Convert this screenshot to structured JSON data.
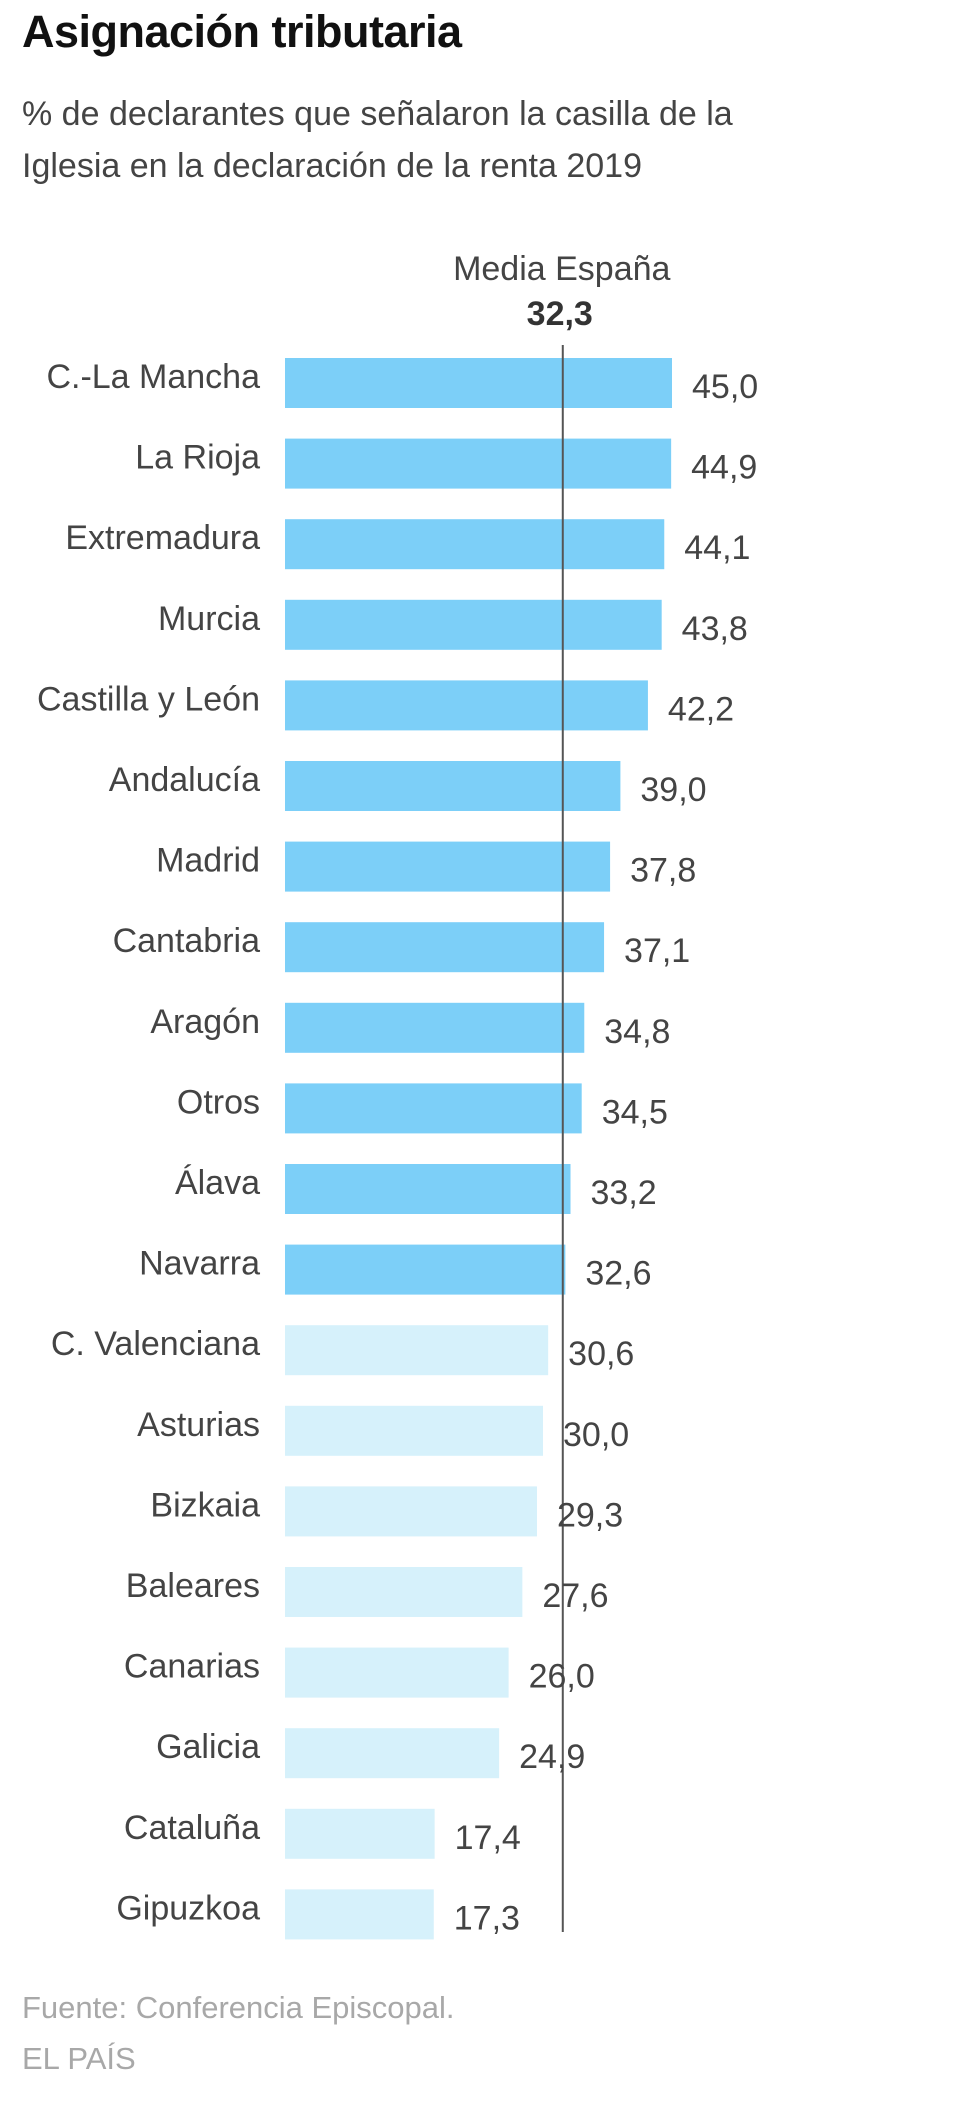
{
  "title": "Asignación tributaria",
  "subtitle": "% de declarantes que señalaron la casilla de la Iglesia en la declaración de la renta 2019",
  "source": "Fuente: Conferencia Episcopal.",
  "brand": "EL PAÍS",
  "colors": {
    "above_mean": "#7ccff8",
    "below_mean": "#d6f1fb",
    "mean_line": "#555555"
  },
  "chart_data": {
    "type": "bar",
    "orientation": "horizontal",
    "categories": [
      "C.-La Mancha",
      "La Rioja",
      "Extremadura",
      "Murcia",
      "Castilla y León",
      "Andalucía",
      "Madrid",
      "Cantabria",
      "Aragón",
      "Otros",
      "Álava",
      "Navarra",
      "C. Valenciana",
      "Asturias",
      "Bizkaia",
      "Baleares",
      "Canarias",
      "Galicia",
      "Cataluña",
      "Gipuzkoa"
    ],
    "values": [
      45.0,
      44.9,
      44.1,
      43.8,
      42.2,
      39.0,
      37.8,
      37.1,
      34.8,
      34.5,
      33.2,
      32.6,
      30.6,
      30.0,
      29.3,
      27.6,
      26.0,
      24.9,
      17.4,
      17.3
    ],
    "value_labels": [
      "45,0",
      "44,9",
      "44,1",
      "43,8",
      "42,2",
      "39,0",
      "37,8",
      "37,1",
      "34,8",
      "34,5",
      "33,2",
      "32,6",
      "30,6",
      "30,0",
      "29,3",
      "27,6",
      "26,0",
      "24,9",
      "17,4",
      "17,3"
    ],
    "reference_line": {
      "label": "Media España",
      "value": 32.3,
      "value_label": "32,3"
    },
    "xlim": [
      0,
      45.0
    ],
    "grid": false
  }
}
